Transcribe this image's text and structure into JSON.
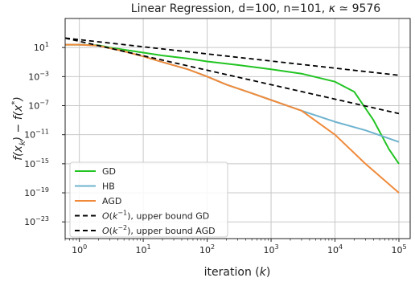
{
  "chart_data": {
    "type": "line",
    "title_prefix": "Linear Regression, d=100, n=101, ",
    "title_kappa": "κ",
    "title_suffix": " ≃  9576",
    "xlabel": "iteration (",
    "xlabel_var": "k",
    "xlabel_end": ")",
    "ylabel": "f(x_k) − f(x*)",
    "x_scale": "log",
    "y_scale": "log",
    "xlim": [
      0.6,
      150000
    ],
    "ylim": [
      5e-26,
      100000.0
    ],
    "grid": true,
    "legend_position": "lower-left",
    "x_ticks": [
      {
        "value": 1,
        "base": "10",
        "exp": "0"
      },
      {
        "value": 10,
        "base": "10",
        "exp": "1"
      },
      {
        "value": 100,
        "base": "10",
        "exp": "2"
      },
      {
        "value": 1000,
        "base": "10",
        "exp": "3"
      },
      {
        "value": 10000,
        "base": "10",
        "exp": "4"
      },
      {
        "value": 100000,
        "base": "10",
        "exp": "5"
      }
    ],
    "y_ticks": [
      {
        "value": 10,
        "base": "10",
        "exp": "1"
      },
      {
        "value": 0.001,
        "base": "10",
        "exp": "−3"
      },
      {
        "value": 1e-07,
        "base": "10",
        "exp": "−7"
      },
      {
        "value": 1e-11,
        "base": "10",
        "exp": "−11"
      },
      {
        "value": 1e-15,
        "base": "10",
        "exp": "−15"
      },
      {
        "value": 1e-19,
        "base": "10",
        "exp": "−19"
      },
      {
        "value": 1e-23,
        "base": "10",
        "exp": "−23"
      }
    ],
    "series": [
      {
        "name": "GD",
        "color": "#22c422",
        "style": "solid",
        "x": [
          0.6,
          1,
          2,
          3,
          5,
          10,
          20,
          50,
          100,
          300,
          1000,
          3000,
          10000,
          20000,
          40000,
          70000,
          100000
        ],
        "y": [
          25,
          25,
          20,
          10,
          5,
          2,
          0.8,
          0.3,
          0.12,
          0.04,
          0.01,
          0.0025,
          0.0002,
          8e-06,
          1e-09,
          1e-13,
          1e-15
        ]
      },
      {
        "name": "HB",
        "color": "#6fb3cf",
        "style": "solid",
        "x": [
          0.6,
          1,
          2,
          3,
          5,
          10,
          20,
          50,
          100,
          200,
          500,
          1000,
          3000,
          10000,
          30000,
          100000
        ],
        "y": [
          25,
          25,
          18,
          8,
          3,
          0.6,
          0.1,
          0.01,
          0.001,
          8e-05,
          5e-06,
          6e-07,
          2e-08,
          6e-10,
          4e-11,
          1e-12
        ]
      },
      {
        "name": "AGD",
        "color": "#f08a3a",
        "style": "solid",
        "x": [
          0.6,
          1,
          2,
          3,
          5,
          10,
          20,
          50,
          100,
          200,
          500,
          1000,
          3000,
          10000,
          30000,
          100000
        ],
        "y": [
          25,
          25,
          18,
          8,
          3,
          0.6,
          0.1,
          0.01,
          0.001,
          8e-05,
          5e-06,
          6e-07,
          2e-08,
          1e-11,
          1e-15,
          1e-19
        ]
      },
      {
        "name": "O(k^-1), upper bound GD",
        "label_prefix": "O(k",
        "label_exp": "−1",
        "label_suffix": "), upper bound GD",
        "color": "#000000",
        "style": "dashed",
        "x": [
          0.6,
          100000
        ],
        "y": [
          200,
          0.0015
        ]
      },
      {
        "name": "O(k^-2), upper bound AGD",
        "label_prefix": "O(k",
        "label_exp": "−2",
        "label_suffix": "), upper bound AGD",
        "color": "#000000",
        "style": "dashed",
        "x": [
          0.6,
          100000
        ],
        "y": [
          200,
          8e-09
        ]
      }
    ]
  }
}
